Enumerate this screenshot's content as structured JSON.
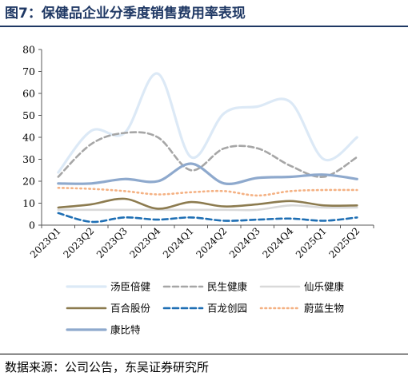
{
  "title": "图7：保健品企业分季度销售费用率表现",
  "source": "数据来源：公司公告，东吴证券研究所",
  "chart_data": {
    "type": "line",
    "categories": [
      "2023Q1",
      "2023Q2",
      "2023Q3",
      "2023Q4",
      "2024Q1",
      "2024Q2",
      "2024Q3",
      "2024Q4",
      "2025Q1",
      "2025Q2"
    ],
    "ylim": [
      0,
      80
    ],
    "yticks": [
      0,
      10,
      20,
      30,
      40,
      50,
      60,
      70,
      80
    ],
    "grid": false,
    "legend_position": "bottom",
    "series": [
      {
        "name": "汤臣倍健",
        "color": "#dce9f6",
        "style": "solid",
        "values": [
          24,
          43,
          42,
          69,
          31,
          51,
          54,
          56,
          30,
          40
        ]
      },
      {
        "name": "民生健康",
        "color": "#a6a6a6",
        "style": "dashed",
        "values": [
          22,
          37,
          42,
          40,
          25,
          35,
          35,
          27,
          22,
          31
        ]
      },
      {
        "name": "仙乐健康",
        "color": "#d9d9d9",
        "style": "solid",
        "values": [
          7,
          7,
          7,
          7,
          7,
          7,
          7,
          9,
          8,
          8
        ]
      },
      {
        "name": "百合股份",
        "color": "#8c7b4f",
        "style": "solid",
        "values": [
          8,
          9.5,
          12,
          7.5,
          10.5,
          8.5,
          9.5,
          11,
          9,
          9
        ]
      },
      {
        "name": "百龙创园",
        "color": "#1f6fb4",
        "style": "dashed",
        "values": [
          5.5,
          1.5,
          3.5,
          2.5,
          3.5,
          2,
          2.5,
          3,
          2,
          3.5
        ]
      },
      {
        "name": "蔚蓝生物",
        "color": "#f4b183",
        "style": "dotted",
        "values": [
          17,
          16.5,
          15.5,
          14,
          15,
          15.5,
          13.5,
          15.5,
          16,
          16
        ]
      },
      {
        "name": "康比特",
        "color": "#8ea9cd",
        "style": "solid",
        "values": [
          19,
          19,
          21,
          20,
          28,
          19,
          21.5,
          22,
          23,
          21
        ]
      }
    ]
  }
}
